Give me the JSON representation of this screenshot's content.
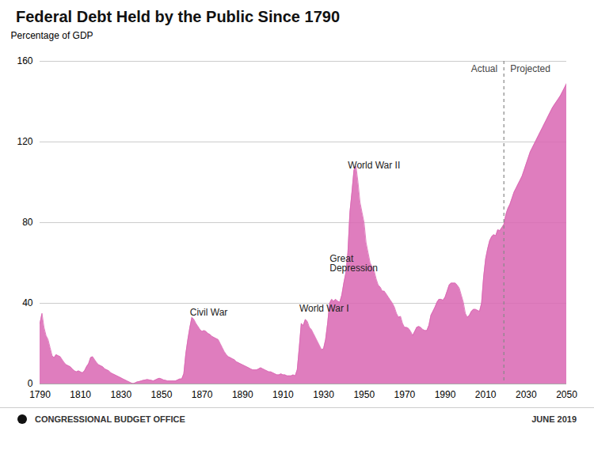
{
  "chart_data": {
    "type": "area",
    "title": "Federal Debt Held by the Public Since 1790",
    "ylabel": "Percentage of GDP",
    "color": "#d966b3",
    "grid": true,
    "xlim": [
      1790,
      2050
    ],
    "ylim": [
      0,
      160
    ],
    "yticks": [
      0,
      40,
      80,
      120,
      160
    ],
    "xticks": [
      1790,
      1810,
      1830,
      1850,
      1870,
      1890,
      1910,
      1930,
      1950,
      1970,
      1990,
      2010,
      2030,
      2050
    ],
    "reference_line": {
      "x": 2019,
      "before_label": "Actual",
      "after_label": "Projected"
    },
    "annotations": [
      {
        "text": "Civil War",
        "x": 1864,
        "y": 34
      },
      {
        "text": "World War I",
        "x": 1918,
        "y": 36
      },
      {
        "text": "Great\nDepression",
        "x": 1933,
        "y": 56
      },
      {
        "text": "World War II",
        "x": 1942,
        "y": 107
      }
    ],
    "footer": [
      "CONGRESSIONAL BUDGET OFFICE",
      "JUNE 2019"
    ],
    "x": [
      1790,
      1791,
      1792,
      1793,
      1794,
      1795,
      1796,
      1797,
      1798,
      1799,
      1800,
      1801,
      1802,
      1803,
      1804,
      1805,
      1806,
      1807,
      1808,
      1809,
      1810,
      1811,
      1812,
      1813,
      1814,
      1815,
      1816,
      1817,
      1818,
      1819,
      1820,
      1821,
      1822,
      1823,
      1824,
      1825,
      1826,
      1827,
      1828,
      1829,
      1830,
      1831,
      1832,
      1833,
      1834,
      1835,
      1836,
      1837,
      1838,
      1839,
      1840,
      1841,
      1842,
      1843,
      1844,
      1845,
      1846,
      1847,
      1848,
      1849,
      1850,
      1851,
      1852,
      1853,
      1854,
      1855,
      1856,
      1857,
      1858,
      1859,
      1860,
      1861,
      1862,
      1863,
      1864,
      1865,
      1866,
      1867,
      1868,
      1869,
      1870,
      1871,
      1872,
      1873,
      1874,
      1875,
      1876,
      1877,
      1878,
      1879,
      1880,
      1881,
      1882,
      1883,
      1884,
      1885,
      1886,
      1887,
      1888,
      1889,
      1890,
      1891,
      1892,
      1893,
      1894,
      1895,
      1896,
      1897,
      1898,
      1899,
      1900,
      1901,
      1902,
      1903,
      1904,
      1905,
      1906,
      1907,
      1908,
      1909,
      1910,
      1911,
      1912,
      1913,
      1914,
      1915,
      1916,
      1917,
      1918,
      1919,
      1920,
      1921,
      1922,
      1923,
      1924,
      1925,
      1926,
      1927,
      1928,
      1929,
      1930,
      1931,
      1932,
      1933,
      1934,
      1935,
      1936,
      1937,
      1938,
      1939,
      1940,
      1941,
      1942,
      1943,
      1944,
      1945,
      1946,
      1947,
      1948,
      1949,
      1950,
      1951,
      1952,
      1953,
      1954,
      1955,
      1956,
      1957,
      1958,
      1959,
      1960,
      1961,
      1962,
      1963,
      1964,
      1965,
      1966,
      1967,
      1968,
      1969,
      1970,
      1971,
      1972,
      1973,
      1974,
      1975,
      1976,
      1977,
      1978,
      1979,
      1980,
      1981,
      1982,
      1983,
      1984,
      1985,
      1986,
      1987,
      1988,
      1989,
      1990,
      1991,
      1992,
      1993,
      1994,
      1995,
      1996,
      1997,
      1998,
      1999,
      2000,
      2001,
      2002,
      2003,
      2004,
      2005,
      2006,
      2007,
      2008,
      2009,
      2010,
      2011,
      2012,
      2013,
      2014,
      2015,
      2016,
      2017,
      2018,
      2019,
      2020,
      2021,
      2022,
      2023,
      2024,
      2025,
      2026,
      2027,
      2028,
      2029,
      2030,
      2031,
      2032,
      2033,
      2034,
      2035,
      2036,
      2037,
      2038,
      2039,
      2040,
      2041,
      2042,
      2043,
      2044,
      2045,
      2046,
      2047,
      2048,
      2049,
      2050
    ],
    "values": [
      30.0,
      35.0,
      28.0,
      24.0,
      22.0,
      18.0,
      14.0,
      13.0,
      14.5,
      14.0,
      13.5,
      12.0,
      10.5,
      9.5,
      9.0,
      8.5,
      7.5,
      6.5,
      6.0,
      6.5,
      6.0,
      5.5,
      6.5,
      8.5,
      10.0,
      13.0,
      13.5,
      12.0,
      10.5,
      9.5,
      9.0,
      8.5,
      7.5,
      7.0,
      6.5,
      5.5,
      5.0,
      4.5,
      4.0,
      3.5,
      3.0,
      2.5,
      2.0,
      1.5,
      1.0,
      0.5,
      0.2,
      0.5,
      1.0,
      1.2,
      1.5,
      1.8,
      2.0,
      2.2,
      2.0,
      1.8,
      1.5,
      2.0,
      2.5,
      2.8,
      2.5,
      2.0,
      1.8,
      1.5,
      1.5,
      1.5,
      1.5,
      1.5,
      2.0,
      2.5,
      2.5,
      5.0,
      15.0,
      22.0,
      28.0,
      33.0,
      32.0,
      30.0,
      28.5,
      27.0,
      26.0,
      26.5,
      26.0,
      25.0,
      24.5,
      23.5,
      23.0,
      22.5,
      22.0,
      20.0,
      18.0,
      16.0,
      14.5,
      13.5,
      13.0,
      12.5,
      12.0,
      11.0,
      10.5,
      10.0,
      9.5,
      9.0,
      8.5,
      8.0,
      7.5,
      7.0,
      7.0,
      7.0,
      7.5,
      8.0,
      7.5,
      7.0,
      6.5,
      6.0,
      6.0,
      5.5,
      5.0,
      4.5,
      4.5,
      5.0,
      4.5,
      4.5,
      4.0,
      4.0,
      4.0,
      4.5,
      4.0,
      7.0,
      18.0,
      30.0,
      29.0,
      32.0,
      31.0,
      28.0,
      27.0,
      25.0,
      23.0,
      21.0,
      19.0,
      17.0,
      17.5,
      22.0,
      30.0,
      40.0,
      42.0,
      41.0,
      42.0,
      41.0,
      40.5,
      44.0,
      50.0,
      55.0,
      65.0,
      85.0,
      95.0,
      106.0,
      108.0,
      100.0,
      90.0,
      85.0,
      80.0,
      70.0,
      65.0,
      60.0,
      58.0,
      56.0,
      52.0,
      49.0,
      48.0,
      46.0,
      46.0,
      44.5,
      43.0,
      41.5,
      40.0,
      38.0,
      35.0,
      33.0,
      33.5,
      30.0,
      28.0,
      28.0,
      27.5,
      26.0,
      24.0,
      26.0,
      28.0,
      28.5,
      28.0,
      27.0,
      26.5,
      26.5,
      29.0,
      34.0,
      36.0,
      38.0,
      40.5,
      42.0,
      42.0,
      41.5,
      43.0,
      46.0,
      49.0,
      50.0,
      50.0,
      50.0,
      49.0,
      47.5,
      44.0,
      40.5,
      35.0,
      33.0,
      34.0,
      36.0,
      37.0,
      37.0,
      36.5,
      36.0,
      40.0,
      53.0,
      62.0,
      67.0,
      71.0,
      73.0,
      74.0,
      73.5,
      76.5,
      76.0,
      77.5,
      79.0,
      84.0,
      87.0,
      89.0,
      92.0,
      95.0,
      97.0,
      99.0,
      101.0,
      103.0,
      106.0,
      109.0,
      112.0,
      115.0,
      117.0,
      119.0,
      121.0,
      123.0,
      125.0,
      127.0,
      129.0,
      131.0,
      133.0,
      135.0,
      137.0,
      138.5,
      140.0,
      141.5,
      143.0,
      145.0,
      147.0,
      149.0
    ]
  }
}
